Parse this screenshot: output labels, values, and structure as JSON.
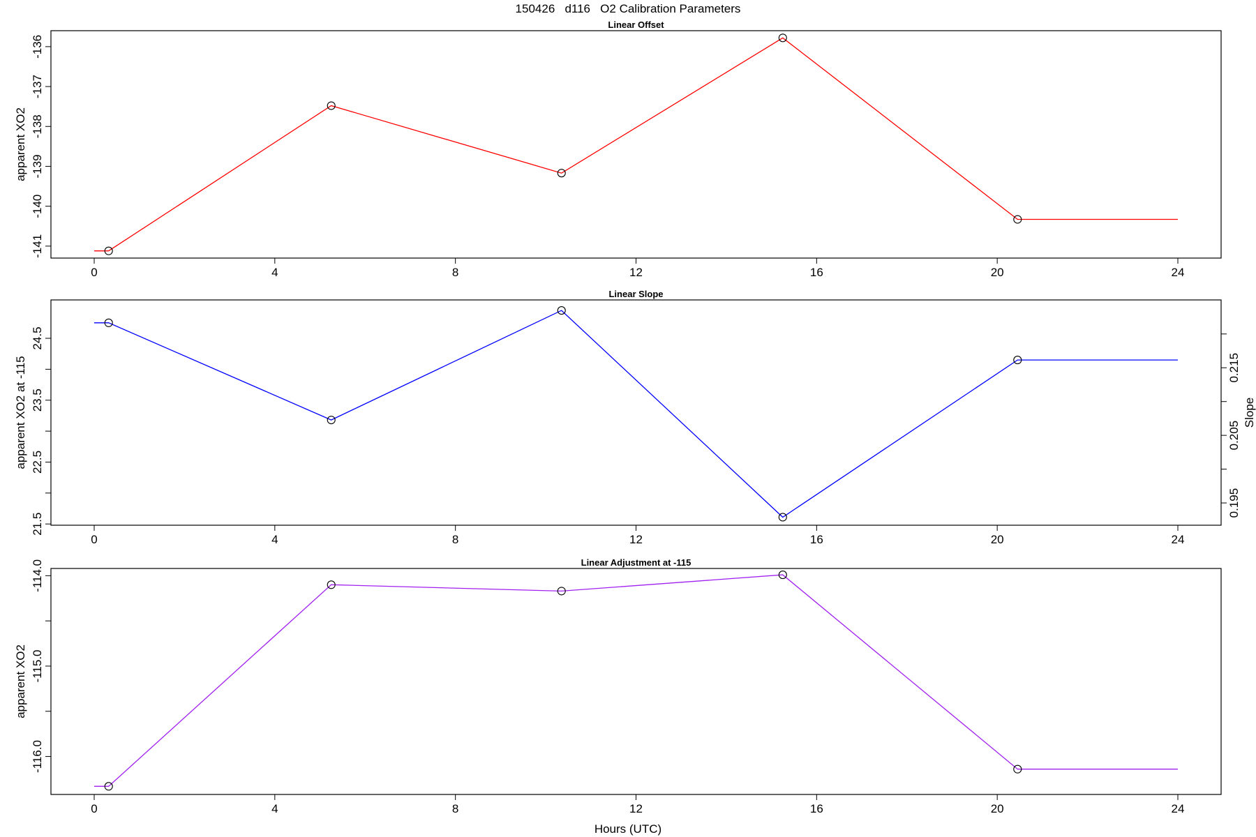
{
  "page_title": "150426   d116   O2 Calibration Parameters",
  "shared_x": {
    "label": "Hours (UTC)",
    "range": [
      0,
      24
    ],
    "ticks": [
      0,
      4,
      8,
      12,
      16,
      20,
      24
    ]
  },
  "chart_data": [
    {
      "type": "line",
      "title": "Linear Offset",
      "xlabel": "",
      "ylabel": "apparent XO2",
      "xlim": [
        0,
        24
      ],
      "ylim": [
        -141.3,
        -135.6
      ],
      "y_ticks": [
        -141,
        -140,
        -139,
        -138,
        -137,
        -136
      ],
      "y_tick_labels": [
        "-141",
        "-140",
        "-139",
        "-138",
        "-137",
        "-136"
      ],
      "series": [
        {
          "color": "#ff0000",
          "x": [
            0.32,
            5.25,
            10.35,
            15.25,
            20.45
          ],
          "y": [
            -141.12,
            -137.48,
            -139.17,
            -135.78,
            -140.33
          ],
          "step_start_x": 0,
          "step_end_x": 24
        }
      ]
    },
    {
      "type": "line",
      "title": "Linear Slope",
      "xlabel": "",
      "ylabel": "apparent XO2 at -115",
      "xlim": [
        0,
        24
      ],
      "ylim": [
        21.48,
        25.12
      ],
      "y_ticks": [
        21.5,
        22,
        22.5,
        23,
        23.5,
        24,
        24.5
      ],
      "y_tick_labels": [
        "21.5",
        "",
        "22.5",
        "",
        "23.5",
        "",
        "24.5"
      ],
      "right_axis": {
        "label": "Slope",
        "ticks": [
          0.195,
          0.2,
          0.205,
          0.21,
          0.215,
          0.22
        ],
        "tick_labels": [
          "0.195",
          "",
          "0.205",
          "",
          "0.215",
          ""
        ],
        "map": {
          "a": 0.195,
          "b": 21.84,
          "c": 0.22,
          "d": 24.57
        }
      },
      "series": [
        {
          "color": "#0000ff",
          "x": [
            0.32,
            5.25,
            10.35,
            15.25,
            20.45
          ],
          "y": [
            24.75,
            23.18,
            24.95,
            21.61,
            24.15
          ],
          "step_start_x": 0,
          "step_end_x": 24
        }
      ]
    },
    {
      "type": "line",
      "title": "Linear Adjustment at -115",
      "xlabel": "Hours (UTC)",
      "ylabel": "apparent XO2",
      "xlim": [
        0,
        24
      ],
      "ylim": [
        -116.42,
        -113.92
      ],
      "y_ticks": [
        -116,
        -115.5,
        -115,
        -114.5,
        -114
      ],
      "y_tick_labels": [
        "-116.0",
        "",
        "-115.0",
        "",
        "-114.0"
      ],
      "series": [
        {
          "color": "#a020f0",
          "x": [
            0.32,
            5.25,
            10.35,
            15.25,
            20.45
          ],
          "y": [
            -116.33,
            -114.1,
            -114.17,
            -113.99,
            -116.14
          ],
          "step_start_x": 0,
          "step_end_x": 24
        }
      ]
    }
  ]
}
